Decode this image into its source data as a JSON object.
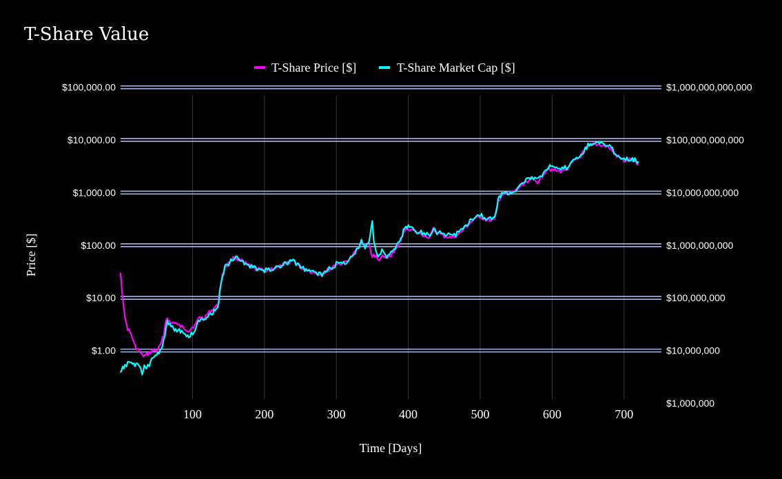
{
  "chart_data": {
    "type": "line",
    "title": "T-Share Value",
    "xlabel": "Time [Days]",
    "ylabel": "Price [$]",
    "y_scale": "log",
    "y2_scale": "log",
    "xlim": [
      0,
      752
    ],
    "ylim": [
      0.1,
      130000
    ],
    "y2lim": [
      1000000,
      1300000000000
    ],
    "legend_position": "top-center",
    "grid": true,
    "x_ticks": [
      100,
      200,
      300,
      400,
      500,
      600,
      700
    ],
    "x_tick_labels": [
      "100",
      "200",
      "300",
      "400",
      "500",
      "600",
      "700"
    ],
    "y_ticks": [
      1,
      10,
      100,
      1000,
      10000,
      100000
    ],
    "y_tick_labels": [
      "$1.00",
      "$10.00",
      "$100.00",
      "$1,000.00",
      "$10,000.00",
      "$100,000.00"
    ],
    "y2_ticks": [
      1000000,
      10000000,
      100000000,
      1000000000,
      10000000000,
      100000000000,
      1000000000000
    ],
    "y2_tick_labels": [
      "$1,000,000",
      "$10,000,000",
      "$100,000,000",
      "$1,000,000,000",
      "$10,000,000,000",
      "$100,000,000,000",
      "$1,000,000,000,000"
    ],
    "colors": {
      "background": "#000000",
      "grid": "#3a3a3a",
      "hline": "#aab6e8",
      "price": "#ff00ff",
      "market_cap": "#00ffff"
    },
    "series": [
      {
        "name": "T-Share Price [$]",
        "axis": "left",
        "color": "#ff00ff",
        "x": [
          0,
          2,
          4,
          6,
          10,
          15,
          20,
          25,
          30,
          35,
          40,
          45,
          50,
          55,
          60,
          63,
          65,
          70,
          75,
          80,
          85,
          90,
          95,
          100,
          105,
          110,
          115,
          120,
          125,
          130,
          135,
          138,
          140,
          145,
          150,
          155,
          160,
          165,
          170,
          180,
          190,
          200,
          210,
          220,
          230,
          240,
          250,
          260,
          270,
          280,
          290,
          300,
          310,
          320,
          330,
          335,
          340,
          345,
          350,
          352,
          355,
          358,
          360,
          365,
          370,
          380,
          390,
          395,
          400,
          410,
          420,
          430,
          435,
          440,
          450,
          460,
          470,
          480,
          490,
          500,
          510,
          520,
          525,
          530,
          540,
          550,
          560,
          570,
          580,
          590,
          595,
          600,
          610,
          620,
          630,
          640,
          650,
          655,
          660,
          670,
          680,
          690,
          700,
          710,
          715,
          720
        ],
        "y": [
          30,
          14,
          8,
          4,
          2.6,
          2,
          1.2,
          1,
          0.8,
          0.8,
          0.9,
          1,
          1,
          1.2,
          2,
          3.8,
          4.2,
          3.2,
          3.5,
          3,
          2.8,
          2.6,
          2.4,
          2.8,
          3.2,
          4.5,
          4,
          4.8,
          5.5,
          6.5,
          7,
          14,
          22,
          38,
          45,
          55,
          58,
          52,
          48,
          40,
          35,
          33,
          36,
          38,
          45,
          52,
          38,
          34,
          30,
          28,
          35,
          44,
          45,
          58,
          85,
          125,
          95,
          110,
          60,
          65,
          60,
          52,
          55,
          60,
          55,
          75,
          120,
          200,
          210,
          180,
          160,
          140,
          200,
          170,
          150,
          140,
          160,
          220,
          300,
          350,
          300,
          300,
          700,
          900,
          950,
          1100,
          1500,
          1800,
          1600,
          2500,
          3000,
          2700,
          2500,
          2800,
          3800,
          5000,
          7500,
          8000,
          8300,
          8000,
          7000,
          5000,
          4000,
          4200,
          3800,
          3600
        ]
      },
      {
        "name": "T-Share Market Cap [$]",
        "axis": "right",
        "color": "#00ffff",
        "x": [
          0,
          3,
          6,
          10,
          15,
          20,
          25,
          30,
          33,
          36,
          40,
          45,
          50,
          55,
          60,
          63,
          65,
          70,
          75,
          80,
          85,
          90,
          95,
          100,
          105,
          110,
          115,
          120,
          125,
          130,
          135,
          138,
          140,
          145,
          150,
          155,
          160,
          165,
          170,
          180,
          190,
          200,
          210,
          220,
          230,
          240,
          250,
          260,
          270,
          280,
          290,
          300,
          310,
          320,
          330,
          335,
          340,
          345,
          350,
          352,
          355,
          358,
          360,
          365,
          370,
          380,
          390,
          395,
          400,
          410,
          420,
          430,
          435,
          440,
          450,
          460,
          470,
          480,
          490,
          500,
          510,
          520,
          525,
          530,
          540,
          550,
          560,
          570,
          580,
          590,
          595,
          600,
          610,
          620,
          630,
          640,
          650,
          655,
          660,
          670,
          680,
          690,
          700,
          710,
          715,
          720
        ],
        "y": [
          3800000,
          4500000,
          5000000,
          6000000,
          6000000,
          5000000,
          5500000,
          3500000,
          5000000,
          4500000,
          5500000,
          7000000,
          9000000,
          10000000,
          15000000,
          25000000,
          35000000,
          28000000,
          26000000,
          24000000,
          22000000,
          20000000,
          19000000,
          21000000,
          28000000,
          38000000,
          40000000,
          45000000,
          50000000,
          55000000,
          60000000,
          130000000,
          220000000,
          380000000,
          450000000,
          550000000,
          580000000,
          520000000,
          480000000,
          400000000,
          350000000,
          330000000,
          360000000,
          380000000,
          450000000,
          520000000,
          380000000,
          340000000,
          300000000,
          280000000,
          350000000,
          440000000,
          450000000,
          580000000,
          850000000,
          1250000000,
          950000000,
          1100000000,
          3000000000,
          1200000000,
          800000000,
          600000000,
          700000000,
          800000000,
          600000000,
          800000000,
          1300000000,
          2200000000,
          2300000000,
          1900000000,
          1700000000,
          1500000000,
          2200000000,
          1800000000,
          1600000000,
          1500000000,
          1700000000,
          2400000000,
          3300000000,
          3800000000,
          3200000000,
          3200000000,
          7500000000,
          9500000000,
          10000000000,
          11500000000,
          16000000000,
          19000000000,
          17000000000,
          27000000000,
          32000000000,
          29000000000,
          27000000000,
          30000000000,
          40000000000,
          53000000000,
          80000000000,
          86000000000,
          90000000000,
          86000000000,
          75000000000,
          53000000000,
          43000000000,
          45000000000,
          41000000000,
          39000000000
        ]
      }
    ]
  }
}
